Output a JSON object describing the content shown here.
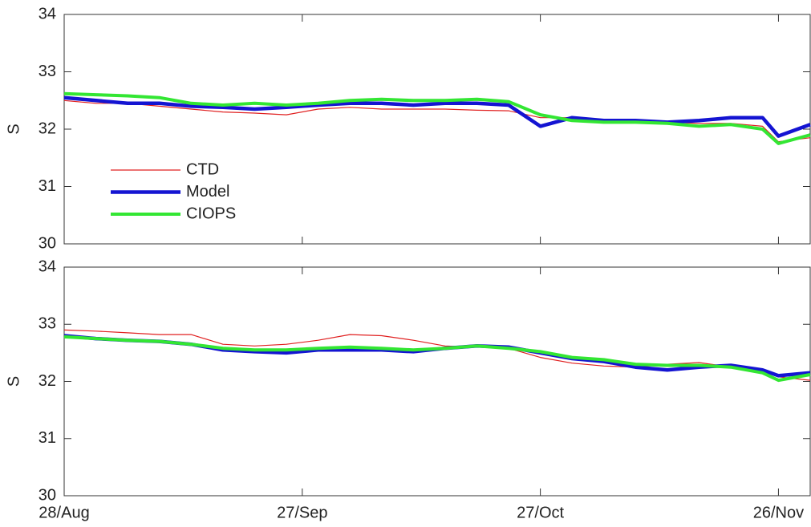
{
  "chart_data": [
    {
      "type": "line",
      "ylabel": "S",
      "x": [
        "28/Aug",
        "1/Sep",
        "5/Sep",
        "9/Sep",
        "13/Sep",
        "17/Sep",
        "21/Sep",
        "25/Sep",
        "29/Sep",
        "3/Oct",
        "7/Oct",
        "11/Oct",
        "15/Oct",
        "19/Oct",
        "23/Oct",
        "27/Oct",
        "31/Oct",
        "4/Nov",
        "8/Nov",
        "12/Nov",
        "16/Nov",
        "20/Nov",
        "24/Nov",
        "26/Nov",
        "30/Nov"
      ],
      "xlim": [
        "28/Aug",
        "30/Nov"
      ],
      "ylim": [
        30,
        34
      ],
      "yticks": [
        30,
        31,
        32,
        33,
        34
      ],
      "series": [
        {
          "name": "CTD",
          "color": "#e02020",
          "values": [
            32.5,
            32.45,
            32.45,
            32.4,
            32.35,
            32.3,
            32.28,
            32.25,
            32.35,
            32.38,
            32.35,
            32.35,
            32.35,
            32.33,
            32.32,
            32.2,
            32.2,
            32.15,
            32.12,
            32.12,
            32.1,
            32.1,
            32.05,
            31.78,
            31.85
          ]
        },
        {
          "name": "Model",
          "color": "#1414d2",
          "values": [
            32.55,
            32.5,
            32.45,
            32.45,
            32.4,
            32.38,
            32.35,
            32.38,
            32.42,
            32.45,
            32.45,
            32.42,
            32.45,
            32.45,
            32.42,
            32.05,
            32.2,
            32.15,
            32.15,
            32.12,
            32.15,
            32.2,
            32.2,
            31.88,
            32.08
          ]
        },
        {
          "name": "CIOPS",
          "color": "#33e633",
          "values": [
            32.62,
            32.6,
            32.58,
            32.55,
            32.45,
            32.42,
            32.45,
            32.42,
            32.45,
            32.5,
            32.52,
            32.5,
            32.5,
            32.52,
            32.48,
            32.25,
            32.15,
            32.12,
            32.12,
            32.1,
            32.05,
            32.08,
            32.0,
            31.75,
            31.9
          ]
        }
      ],
      "legend": "left"
    },
    {
      "type": "line",
      "ylabel": "S",
      "x": [
        "28/Aug",
        "1/Sep",
        "5/Sep",
        "9/Sep",
        "13/Sep",
        "17/Sep",
        "21/Sep",
        "25/Sep",
        "29/Sep",
        "3/Oct",
        "7/Oct",
        "11/Oct",
        "15/Oct",
        "19/Oct",
        "23/Oct",
        "27/Oct",
        "31/Oct",
        "4/Nov",
        "8/Nov",
        "12/Nov",
        "16/Nov",
        "20/Nov",
        "24/Nov",
        "26/Nov",
        "30/Nov"
      ],
      "xlim": [
        "28/Aug",
        "30/Nov"
      ],
      "xticks": [
        "28/Aug",
        "27/Sep",
        "27/Oct",
        "26/Nov"
      ],
      "ylim": [
        30,
        34
      ],
      "yticks": [
        30,
        31,
        32,
        33,
        34
      ],
      "series": [
        {
          "color": "#e02020",
          "values": [
            32.9,
            32.88,
            32.85,
            32.82,
            32.82,
            32.65,
            32.62,
            32.65,
            32.72,
            32.82,
            32.8,
            32.72,
            32.62,
            32.6,
            32.58,
            32.42,
            32.32,
            32.27,
            32.25,
            32.3,
            32.33,
            32.25,
            32.18,
            32.08,
            32.02
          ]
        },
        {
          "color": "#1414d2",
          "values": [
            32.8,
            32.75,
            32.72,
            32.7,
            32.65,
            32.55,
            32.52,
            32.5,
            32.55,
            32.55,
            32.55,
            32.52,
            32.58,
            32.62,
            32.6,
            32.5,
            32.4,
            32.35,
            32.25,
            32.2,
            32.25,
            32.28,
            32.2,
            32.1,
            32.15
          ]
        },
        {
          "color": "#33e633",
          "values": [
            32.78,
            32.75,
            32.72,
            32.7,
            32.65,
            32.58,
            32.55,
            32.55,
            32.58,
            32.6,
            32.58,
            32.55,
            32.58,
            32.62,
            32.58,
            32.52,
            32.42,
            32.38,
            32.3,
            32.28,
            32.28,
            32.25,
            32.15,
            32.02,
            32.12
          ]
        }
      ]
    }
  ]
}
